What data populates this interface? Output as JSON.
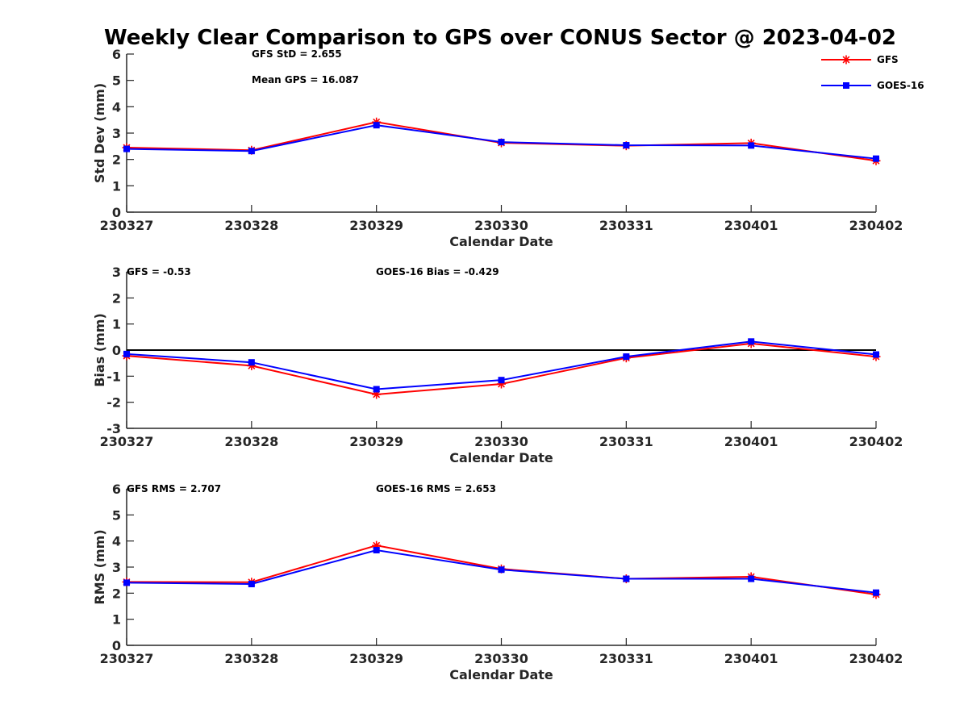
{
  "chart_data": {
    "title": "Weekly Clear Comparison to GPS over CONUS Sector @ 2023-04-02",
    "legend": {
      "placement": "top-right",
      "entries": [
        {
          "label": "GFS",
          "color": "#ff0000",
          "marker": "asterisk"
        },
        {
          "label": "GOES-16",
          "color": "#0000ff",
          "marker": "square"
        }
      ]
    },
    "panels": [
      {
        "id": "std",
        "type": "line",
        "ylabel": "Std Dev (mm)",
        "xlabel": "Calendar Date",
        "categories": [
          "230327",
          "230328",
          "230329",
          "230330",
          "230331",
          "230401",
          "230402"
        ],
        "ylim": [
          0,
          6
        ],
        "yticks": [
          0,
          1,
          2,
          3,
          4,
          5,
          6
        ],
        "zero_line": false,
        "annotations": [
          "GFS StD = 2.655",
          "Mean GPS = 16.087"
        ],
        "series": [
          {
            "name": "GFS",
            "color": "#ff0000",
            "marker": "asterisk",
            "values": [
              2.45,
              2.35,
              3.42,
              2.63,
              2.52,
              2.62,
              1.95
            ]
          },
          {
            "name": "GOES-16",
            "color": "#0000ff",
            "marker": "square",
            "values": [
              2.4,
              2.32,
              3.3,
              2.66,
              2.54,
              2.53,
              2.03
            ]
          }
        ]
      },
      {
        "id": "bias",
        "type": "line",
        "ylabel": "Bias (mm)",
        "xlabel": "Calendar Date",
        "categories": [
          "230327",
          "230328",
          "230329",
          "230330",
          "230331",
          "230401",
          "230402"
        ],
        "ylim": [
          -3,
          3
        ],
        "yticks": [
          -3,
          -2,
          -1,
          0,
          1,
          2,
          3
        ],
        "zero_line": true,
        "annotations": [
          "GFS = -0.53",
          "GOES-16 Bias  = -0.429"
        ],
        "series": [
          {
            "name": "GFS",
            "color": "#ff0000",
            "marker": "asterisk",
            "values": [
              -0.22,
              -0.6,
              -1.7,
              -1.3,
              -0.3,
              0.25,
              -0.25
            ]
          },
          {
            "name": "GOES-16",
            "color": "#0000ff",
            "marker": "square",
            "values": [
              -0.15,
              -0.47,
              -1.5,
              -1.15,
              -0.25,
              0.33,
              -0.17
            ]
          }
        ]
      },
      {
        "id": "rms",
        "type": "line",
        "ylabel": "RMS (mm)",
        "xlabel": "Calendar Date",
        "categories": [
          "230327",
          "230328",
          "230329",
          "230330",
          "230331",
          "230401",
          "230402"
        ],
        "ylim": [
          0,
          6
        ],
        "yticks": [
          0,
          1,
          2,
          3,
          4,
          5,
          6
        ],
        "zero_line": false,
        "annotations": [
          "GFS RMS = 2.707",
          "GOES-16 RMS = 2.653"
        ],
        "series": [
          {
            "name": "GFS",
            "color": "#ff0000",
            "marker": "asterisk",
            "values": [
              2.43,
              2.42,
              3.83,
              2.93,
              2.55,
              2.63,
              1.95
            ]
          },
          {
            "name": "GOES-16",
            "color": "#0000ff",
            "marker": "square",
            "values": [
              2.4,
              2.35,
              3.65,
              2.9,
              2.55,
              2.55,
              2.02
            ]
          }
        ]
      }
    ]
  }
}
